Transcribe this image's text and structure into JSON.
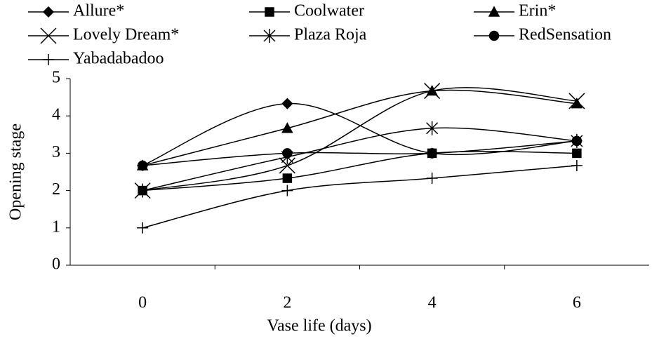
{
  "chart_data": {
    "type": "line",
    "x_label": "Vase life (days)",
    "y_label": "Opening stage",
    "categories": [
      "0",
      "2",
      "4",
      "6"
    ],
    "ylim": [
      0,
      5
    ],
    "yticks": [
      0,
      1,
      2,
      3,
      4,
      5
    ],
    "series": [
      {
        "name": "Allure*",
        "color": "#000000",
        "marker": "diamond",
        "values": [
          2.67,
          4.33,
          3.0,
          3.33
        ]
      },
      {
        "name": "Coolwater",
        "color": "#000000",
        "marker": "square",
        "values": [
          2.0,
          2.33,
          3.0,
          3.0
        ]
      },
      {
        "name": "Erin*",
        "color": "#000000",
        "marker": "triangle",
        "values": [
          2.67,
          3.67,
          4.67,
          4.33
        ]
      },
      {
        "name": "Lovely Dream*",
        "color": "#000000",
        "marker": "x",
        "values": [
          2.0,
          2.67,
          4.67,
          4.4
        ]
      },
      {
        "name": "Plaza Roja",
        "color": "#000000",
        "marker": "asterisk",
        "values": [
          2.0,
          2.9,
          3.67,
          3.33
        ]
      },
      {
        "name": "RedSensation",
        "color": "#000000",
        "marker": "circle",
        "values": [
          2.67,
          3.0,
          3.0,
          3.33
        ]
      },
      {
        "name": "Yabadabadoo",
        "color": "#000000",
        "marker": "plus",
        "values": [
          1.0,
          2.0,
          2.33,
          2.67
        ]
      }
    ]
  }
}
